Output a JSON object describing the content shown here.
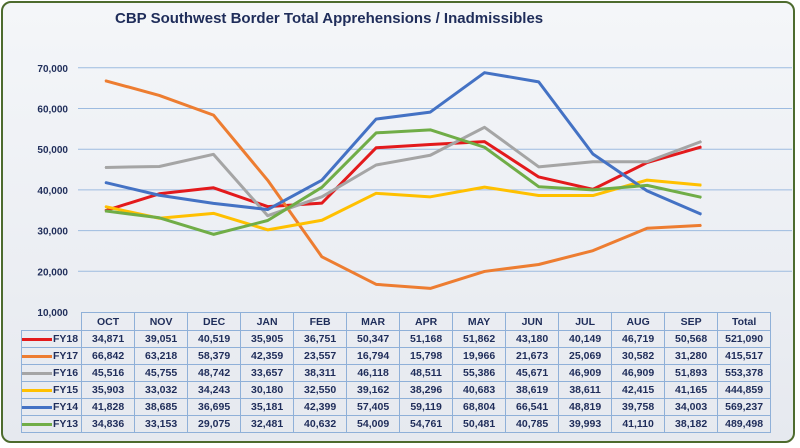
{
  "chart_data": {
    "type": "line",
    "title": "CBP Southwest Border Total Apprehensions / Inadmissibles",
    "categories": [
      "OCT",
      "NOV",
      "DEC",
      "JAN",
      "FEB",
      "MAR",
      "APR",
      "MAY",
      "JUN",
      "JUL",
      "AUG",
      "SEP"
    ],
    "total_label": "Total",
    "yticks": [
      "10,000",
      "20,000",
      "30,000",
      "40,000",
      "50,000",
      "60,000",
      "70,000"
    ],
    "ylim": [
      10000,
      70000
    ],
    "grid": true,
    "legend": "data-table",
    "series": [
      {
        "name": "FY18",
        "color": "#e31a1c",
        "values": [
          34871,
          39051,
          40519,
          35905,
          36751,
          50347,
          51168,
          51862,
          43180,
          40149,
          46719,
          50568
        ],
        "labels": [
          "34,871",
          "39,051",
          "40,519",
          "35,905",
          "36,751",
          "50,347",
          "51,168",
          "51,862",
          "43,180",
          "40,149",
          "46,719",
          "50,568"
        ],
        "total": "521,090"
      },
      {
        "name": "FY17",
        "color": "#ed7d31",
        "values": [
          66842,
          63218,
          58379,
          42359,
          23557,
          16794,
          15798,
          19966,
          21673,
          25069,
          30582,
          31280
        ],
        "labels": [
          "66,842",
          "63,218",
          "58,379",
          "42,359",
          "23,557",
          "16,794",
          "15,798",
          "19,966",
          "21,673",
          "25,069",
          "30,582",
          "31,280"
        ],
        "total": "415,517"
      },
      {
        "name": "FY16",
        "color": "#a5a5a5",
        "values": [
          45516,
          45755,
          48742,
          33657,
          38311,
          46118,
          48511,
          55386,
          45671,
          46909,
          46909,
          51893
        ],
        "labels": [
          "45,516",
          "45,755",
          "48,742",
          "33,657",
          "38,311",
          "46,118",
          "48,511",
          "55,386",
          "45,671",
          "46,909",
          "46,909",
          "51,893"
        ],
        "total": "553,378"
      },
      {
        "name": "FY15",
        "color": "#ffc000",
        "values": [
          35903,
          33032,
          34243,
          30180,
          32550,
          39162,
          38296,
          40683,
          38619,
          38611,
          42415,
          41165
        ],
        "labels": [
          "35,903",
          "33,032",
          "34,243",
          "30,180",
          "32,550",
          "39,162",
          "38,296",
          "40,683",
          "38,619",
          "38,611",
          "42,415",
          "41,165"
        ],
        "total": "444,859"
      },
      {
        "name": "FY14",
        "color": "#4472c4",
        "values": [
          41828,
          38685,
          36695,
          35181,
          42399,
          57405,
          59119,
          68804,
          66541,
          48819,
          39758,
          34003
        ],
        "labels": [
          "41,828",
          "38,685",
          "36,695",
          "35,181",
          "42,399",
          "57,405",
          "59,119",
          "68,804",
          "66,541",
          "48,819",
          "39,758",
          "34,003"
        ],
        "total": "569,237"
      },
      {
        "name": "FY13",
        "color": "#70ad47",
        "values": [
          34836,
          33153,
          29075,
          32481,
          40632,
          54009,
          54761,
          50481,
          40785,
          39993,
          41110,
          38182
        ],
        "labels": [
          "34,836",
          "33,153",
          "29,075",
          "32,481",
          "40,632",
          "54,009",
          "54,761",
          "50,481",
          "40,785",
          "39,993",
          "41,110",
          "38,182"
        ],
        "total": "489,498"
      }
    ]
  }
}
